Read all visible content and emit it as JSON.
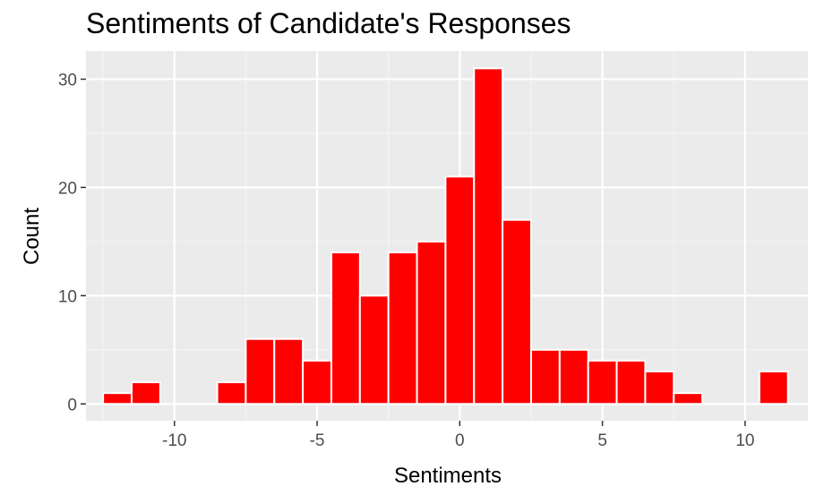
{
  "chart_data": {
    "type": "bar",
    "title": "Sentiments of Candidate's Responses",
    "xlabel": "Sentiments",
    "ylabel": "Count",
    "xlim": [
      -13.1,
      12.2
    ],
    "ylim": [
      -1.55,
      32.6
    ],
    "x_ticks": [
      -10,
      -5,
      0,
      5,
      10
    ],
    "y_ticks": [
      0,
      10,
      20,
      30
    ],
    "x_tick_labels": [
      "-10",
      "-5",
      "0",
      "5",
      "10"
    ],
    "y_tick_labels": [
      "0",
      "10",
      "20",
      "30"
    ],
    "bin_width": 1,
    "x": [
      -12,
      -11,
      -10,
      -9,
      -8,
      -7,
      -6,
      -5,
      -4,
      -3,
      -2,
      -1,
      0,
      1,
      2,
      3,
      4,
      5,
      6,
      7,
      8,
      9,
      10,
      11
    ],
    "values": [
      1,
      2,
      0,
      0,
      2,
      6,
      6,
      4,
      14,
      10,
      14,
      15,
      21,
      31,
      17,
      5,
      5,
      4,
      4,
      3,
      1,
      0,
      0,
      3
    ],
    "grid": true,
    "colors": {
      "bar_fill": "#ff0000",
      "bar_stroke": "#ffffff",
      "panel_bg": "#ebebeb",
      "grid_major": "#ffffff",
      "grid_minor": "#f5f5f5",
      "tick_text": "#4d4d4d",
      "tick_mark": "#333333"
    }
  }
}
